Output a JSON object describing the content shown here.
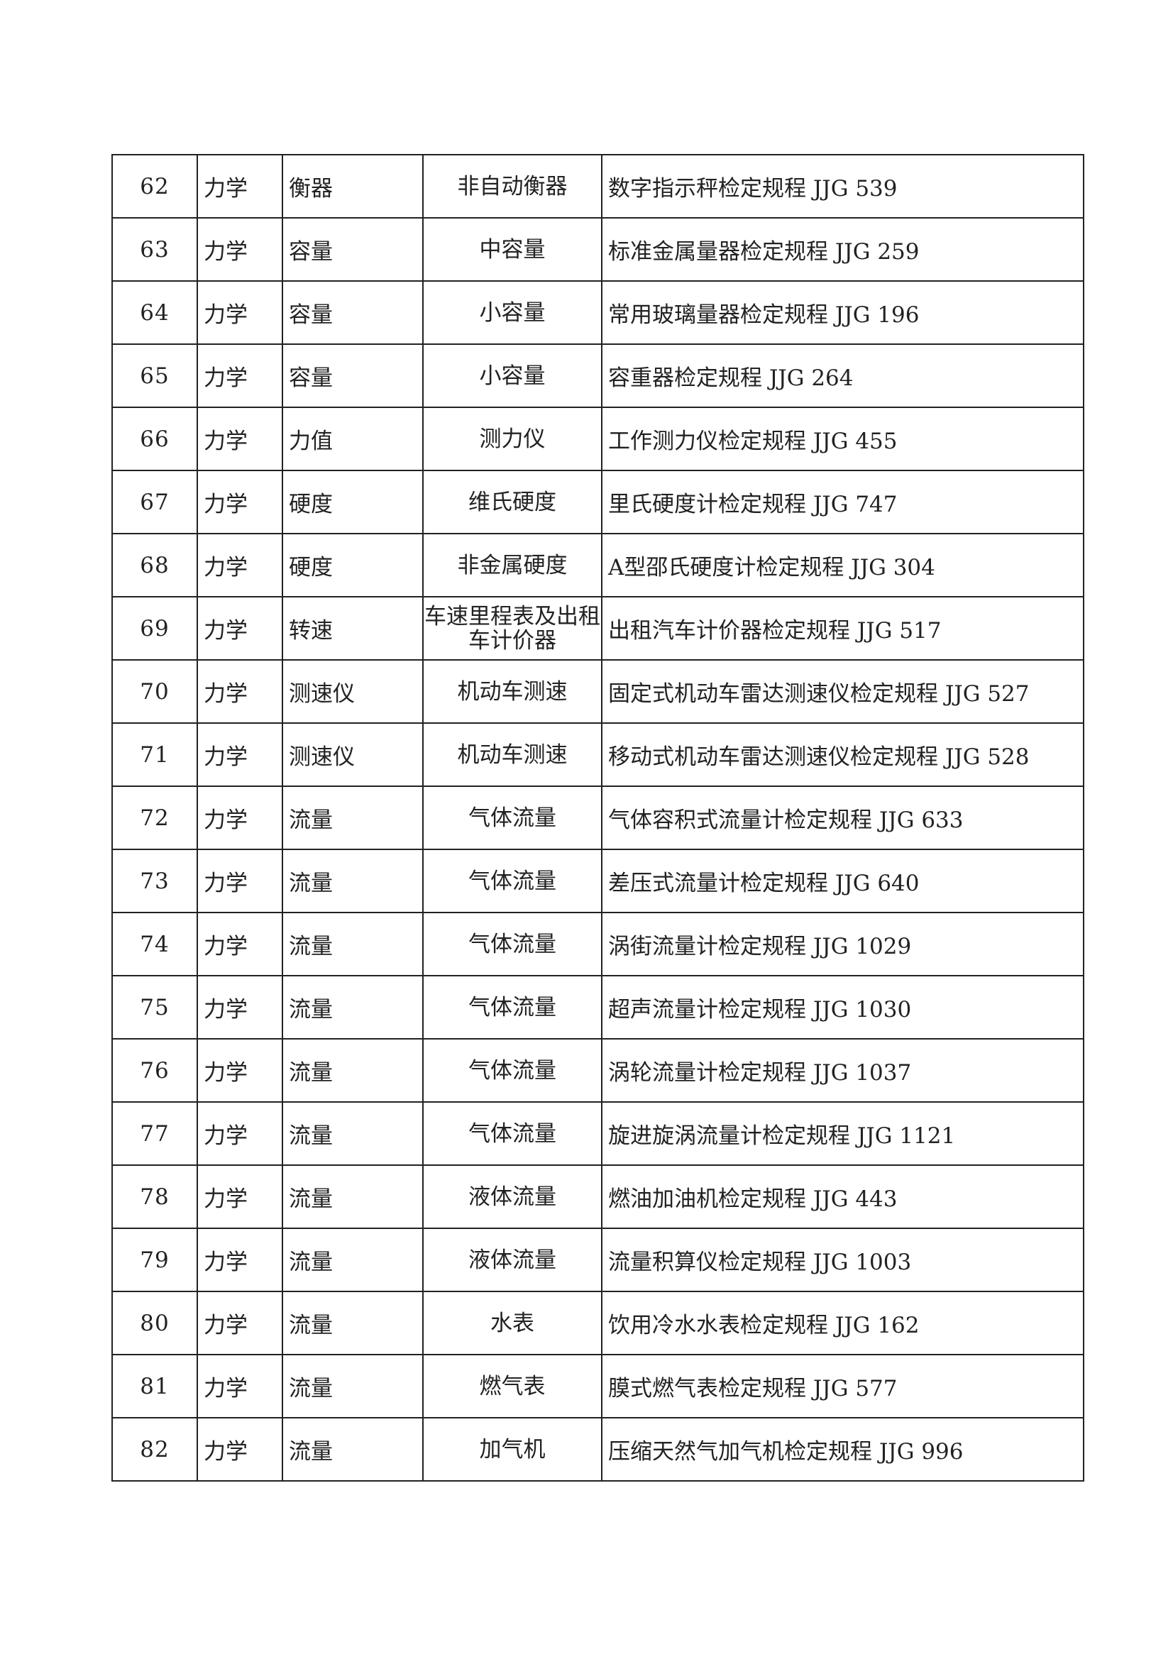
{
  "rows": [
    [
      "62",
      "力学",
      "衡器",
      "非自动衡器",
      "数字指示秤检定规程 JJG 539"
    ],
    [
      "63",
      "力学",
      "容量",
      "中容量",
      "标准金属量器检定规程 JJG 259"
    ],
    [
      "64",
      "力学",
      "容量",
      "小容量",
      "常用玻璃量器检定规程 JJG 196"
    ],
    [
      "65",
      "力学",
      "容量",
      "小容量",
      "容重器检定规程 JJG 264"
    ],
    [
      "66",
      "力学",
      "力值",
      "测力仪",
      "工作测力仪检定规程 JJG 455"
    ],
    [
      "67",
      "力学",
      "硬度",
      "维氏硬度",
      "里氏硬度计检定规程 JJG 747"
    ],
    [
      "68",
      "力学",
      "硬度",
      "非金属硬度",
      "A型邵氏硬度计检定规程 JJG 304"
    ],
    [
      "69",
      "力学",
      "转速",
      "车速里程表及出租车计价器",
      "出租汽车计价器检定规程 JJG 517"
    ],
    [
      "70",
      "力学",
      "测速仪",
      "机动车测速",
      "固定式机动车雷达测速仪检定规程 JJG 527"
    ],
    [
      "71",
      "力学",
      "测速仪",
      "机动车测速",
      "移动式机动车雷达测速仪检定规程 JJG 528"
    ],
    [
      "72",
      "力学",
      "流量",
      "气体流量",
      "气体容积式流量计检定规程 JJG 633"
    ],
    [
      "73",
      "力学",
      "流量",
      "气体流量",
      "差压式流量计检定规程 JJG 640"
    ],
    [
      "74",
      "力学",
      "流量",
      "气体流量",
      "涡街流量计检定规程 JJG 1029"
    ],
    [
      "75",
      "力学",
      "流量",
      "气体流量",
      "超声流量计检定规程 JJG 1030"
    ],
    [
      "76",
      "力学",
      "流量",
      "气体流量",
      "涡轮流量计检定规程 JJG 1037"
    ],
    [
      "77",
      "力学",
      "流量",
      "气体流量",
      "旋进旋涡流量计检定规程 JJG 1121"
    ],
    [
      "78",
      "力学",
      "流量",
      "液体流量",
      "燃油加油机检定规程 JJG 443"
    ],
    [
      "79",
      "力学",
      "流量",
      "液体流量",
      "流量积算仪检定规程 JJG 1003"
    ],
    [
      "80",
      "力学",
      "流量",
      "水表",
      "饮用冷水水表检定规程 JJG 162"
    ],
    [
      "81",
      "力学",
      "流量",
      "燃气表",
      "膜式燃气表检定规程 JJG 577"
    ],
    [
      "82",
      "力学",
      "流量",
      "加气机",
      "压缩天然气加气机检定规程 JJG 996"
    ]
  ]
}
